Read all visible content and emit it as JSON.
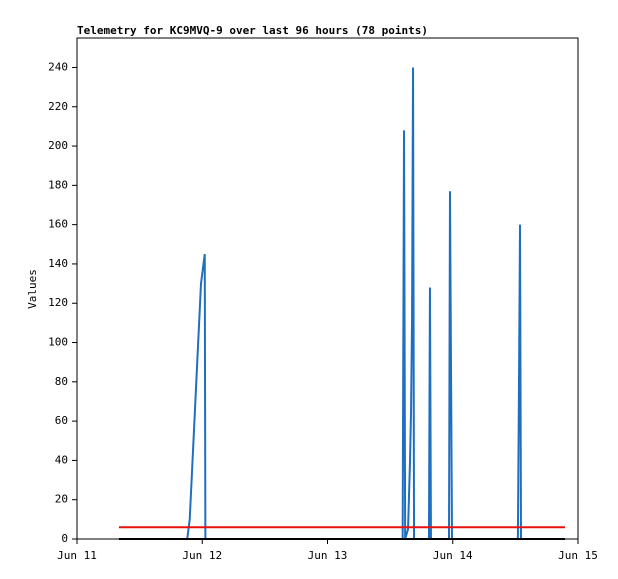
{
  "chart_data": {
    "type": "line",
    "title": "Telemetry for KC9MVQ-9 over last 96 hours (78 points)",
    "y_label": "Values",
    "xlim": [
      11,
      15
    ],
    "ylim": [
      0,
      255
    ],
    "xticks": [
      {
        "value": 11,
        "label": "Jun 11"
      },
      {
        "value": 12,
        "label": "Jun 12"
      },
      {
        "value": 13,
        "label": "Jun 13"
      },
      {
        "value": 14,
        "label": "Jun 14"
      },
      {
        "value": 15,
        "label": "Jun 15"
      }
    ],
    "yticks": [
      0,
      20,
      40,
      60,
      80,
      100,
      120,
      140,
      160,
      180,
      200,
      220,
      240
    ],
    "series": [
      {
        "color": "#1f6fc0",
        "x": [
          11.88,
          11.9,
          11.93,
          11.96,
          11.99,
          12.01,
          12.02,
          12.025,
          13.6,
          13.611,
          13.62,
          13.643,
          13.659,
          13.667,
          13.675,
          13.683,
          13.691,
          13.81,
          13.818,
          13.826,
          13.97,
          13.978,
          13.986,
          13.994,
          14.52,
          14.529,
          14.537,
          14.545
        ],
        "values": [
          0,
          10,
          50,
          90,
          130,
          140,
          145,
          0,
          0,
          208,
          0,
          5,
          40,
          65,
          112,
          240,
          0,
          0,
          128,
          0,
          0,
          177,
          88,
          0,
          0,
          80,
          160,
          0
        ]
      },
      {
        "color": "#e8120c",
        "x": [
          11.335,
          14.896
        ],
        "values": [
          6,
          6
        ]
      },
      {
        "color": "#000000",
        "x": [
          11.335,
          14.896
        ],
        "values": [
          0,
          0
        ]
      }
    ]
  }
}
